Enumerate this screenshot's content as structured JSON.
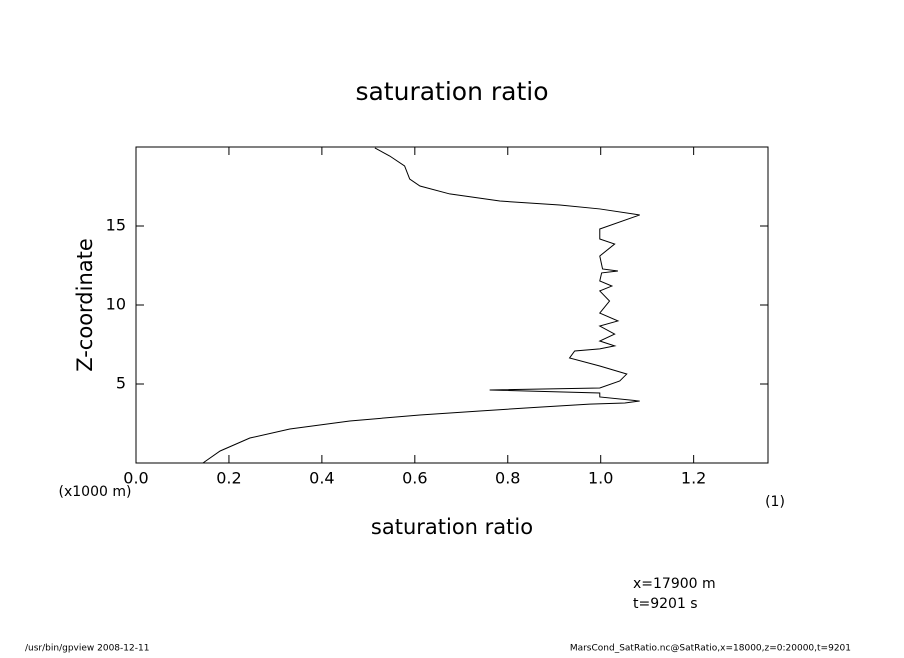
{
  "chart_data": {
    "type": "line",
    "title": "saturation ratio",
    "x_label": "saturation ratio",
    "x_unit": "(1)",
    "y_label": "Z-coordinate",
    "y_unit": "(x1000 m)",
    "annotations": [
      "x=17900 m",
      "t=9201 s"
    ],
    "footer_left": "/usr/bin/gpview   2008-12-11",
    "footer_right": "MarsCond_SatRatio.nc@SatRatio,x=18000,z=0:20000,t=9201",
    "xlim": [
      0,
      1.36
    ],
    "ylim": [
      0,
      20
    ],
    "xticks": [
      {
        "value": 0,
        "label": "0.0"
      },
      0.2,
      0.4,
      0.6,
      0.8,
      {
        "value": 1,
        "label": "1.0"
      },
      1.2
    ],
    "yticks": [
      5,
      10,
      15
    ],
    "series": [
      {
        "color": "#000000",
        "x": [
          0.144,
          0.181,
          0.245,
          0.331,
          0.46,
          0.611,
          0.74,
          0.869,
          0.976,
          1.052,
          1.084,
          0.998,
          0.998,
          0.761,
          0.998,
          1.041,
          1.056,
          0.998,
          0.933,
          0.944,
          0.998,
          1.03,
          0.998,
          1.03,
          0.998,
          1.037,
          0.998,
          1.019,
          0.998,
          1.024,
          0.998,
          1.002,
          1.037,
          1.004,
          0.998,
          1.03,
          0.998,
          0.998,
          1.084,
          0.998,
          0.912,
          0.783,
          0.675,
          0.611,
          0.589,
          0.578,
          0.546,
          0.514
        ],
        "values": [
          0,
          0.76,
          1.58,
          2.15,
          2.66,
          3.04,
          3.29,
          3.54,
          3.73,
          3.8,
          3.92,
          4.18,
          4.43,
          4.62,
          4.75,
          5.19,
          5.63,
          6.14,
          6.65,
          7.09,
          7.22,
          7.41,
          7.72,
          8.16,
          8.67,
          8.99,
          9.49,
          10.25,
          10.89,
          11.2,
          11.52,
          12.03,
          12.15,
          12.28,
          13.1,
          13.86,
          14.18,
          14.81,
          15.7,
          16.08,
          16.33,
          16.58,
          17.03,
          17.53,
          17.97,
          18.8,
          19.43,
          19.94
        ]
      }
    ]
  }
}
